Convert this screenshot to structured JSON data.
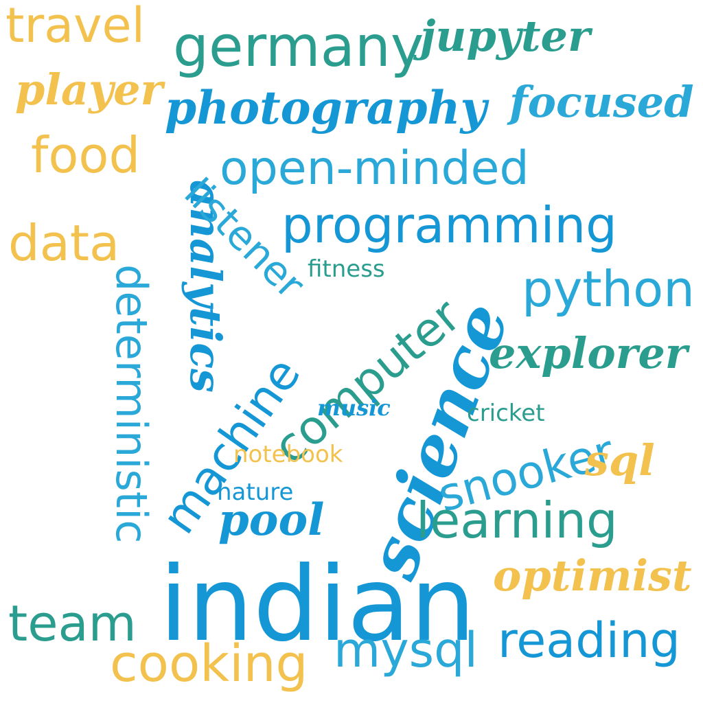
{
  "palette": {
    "yellow": "#f2c14e",
    "teal": "#2a9d8f",
    "blue": "#1597d6",
    "lightblue": "#2aa8d8"
  },
  "words": {
    "travel": "travel",
    "player": "player",
    "food": "food",
    "data": "data",
    "germany": "germany",
    "jupyter": "jupyter",
    "photography": "photography",
    "focused": "focused",
    "open_minded": "open-minded",
    "analytics": "analytics",
    "listener": "listener",
    "programming": "programming",
    "fitness": "fitness",
    "deterministic": "deterministic",
    "python": "python",
    "science": "science",
    "computer": "computer",
    "explorer": "explorer",
    "machine": "machine",
    "music": "music",
    "cricket": "cricket",
    "snooker": "snooker",
    "notebook": "notebook",
    "sql": "sql",
    "nature": "nature",
    "pool": "pool",
    "learning": "learning",
    "optimist": "optimist",
    "indian": "indian",
    "team": "team",
    "reading": "reading",
    "cooking": "cooking",
    "mysql": "mysql"
  }
}
